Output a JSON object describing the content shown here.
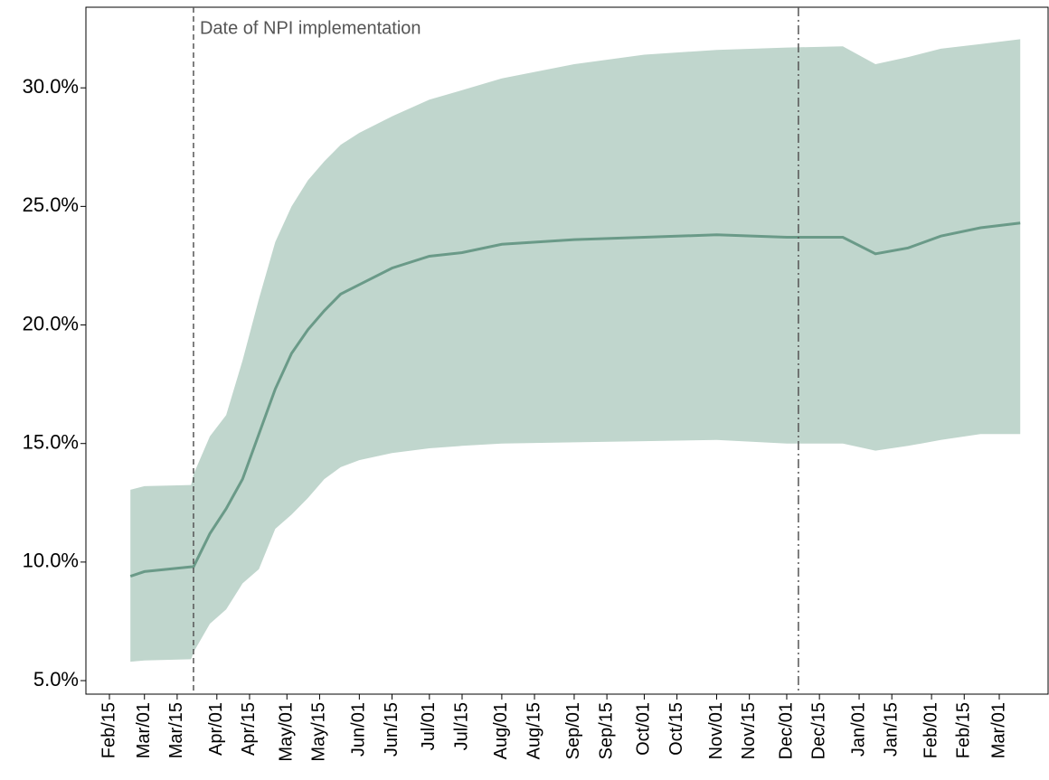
{
  "chart_data": {
    "type": "line",
    "annotation": "Date of NPI implementation",
    "color": "#6a9a88",
    "band_color": "#c0d6cd",
    "x": [
      "Feb/24",
      "Mar/01",
      "Mar/21",
      "Mar/22",
      "Mar/29",
      "Apr/05",
      "Apr/12",
      "Apr/19",
      "Apr/26",
      "May/03",
      "May/10",
      "May/17",
      "May/24",
      "Jun/01",
      "Jun/15",
      "Jul/01",
      "Jul/15",
      "Aug/01",
      "Sep/01",
      "Oct/01",
      "Nov/01",
      "Dec/01",
      "Dec/25",
      "Jan/08",
      "Jan/22",
      "Feb/05",
      "Feb/22",
      "Mar/10"
    ],
    "values": [
      9.4,
      9.6,
      9.8,
      9.8,
      11.2,
      12.25,
      13.5,
      15.4,
      17.3,
      18.8,
      19.8,
      20.6,
      21.3,
      21.7,
      22.4,
      22.9,
      23.05,
      23.4,
      23.6,
      23.7,
      23.8,
      23.7,
      23.7,
      23.0,
      23.25,
      23.75,
      24.1,
      24.3
    ],
    "lower": [
      5.8,
      5.85,
      5.9,
      6.2,
      7.4,
      8.0,
      9.1,
      9.7,
      11.4,
      12.0,
      12.7,
      13.5,
      14.0,
      14.3,
      14.6,
      14.8,
      14.9,
      15.0,
      15.05,
      15.1,
      15.15,
      15.0,
      15.0,
      14.7,
      14.9,
      15.15,
      15.4,
      15.4
    ],
    "upper": [
      13.05,
      13.2,
      13.25,
      13.7,
      15.3,
      16.2,
      18.5,
      21.1,
      23.5,
      25.0,
      26.1,
      26.9,
      27.6,
      28.1,
      28.8,
      29.5,
      29.9,
      30.4,
      31.0,
      31.4,
      31.6,
      31.7,
      31.75,
      31.0,
      31.3,
      31.65,
      31.85,
      32.05
    ],
    "vlines": [
      {
        "x": "Mar/22",
        "style": "dashed"
      },
      {
        "x": "Dec/06",
        "style": "dashdot"
      }
    ],
    "xticks": [
      "Feb/15",
      "Mar/01",
      "Mar/15",
      "Apr/01",
      "Apr/15",
      "May/01",
      "May/15",
      "Jun/01",
      "Jun/15",
      "Jul/01",
      "Jul/15",
      "Aug/01",
      "Aug/15",
      "Sep/01",
      "Sep/15",
      "Oct/01",
      "Oct/15",
      "Nov/01",
      "Nov/15",
      "Dec/01",
      "Dec/15",
      "Jan/01",
      "Jan/15",
      "Feb/01",
      "Feb/15",
      "Mar/01"
    ],
    "ylim": [
      4.43,
      33.4
    ],
    "yticks": [
      {
        "value": 5,
        "label": "5.0%"
      },
      {
        "value": 10,
        "label": "10.0%"
      },
      {
        "value": 15,
        "label": "15.0%"
      },
      {
        "value": 20,
        "label": "20.0%"
      },
      {
        "value": 25,
        "label": "25.0%"
      },
      {
        "value": 30,
        "label": "30.0%"
      }
    ]
  }
}
